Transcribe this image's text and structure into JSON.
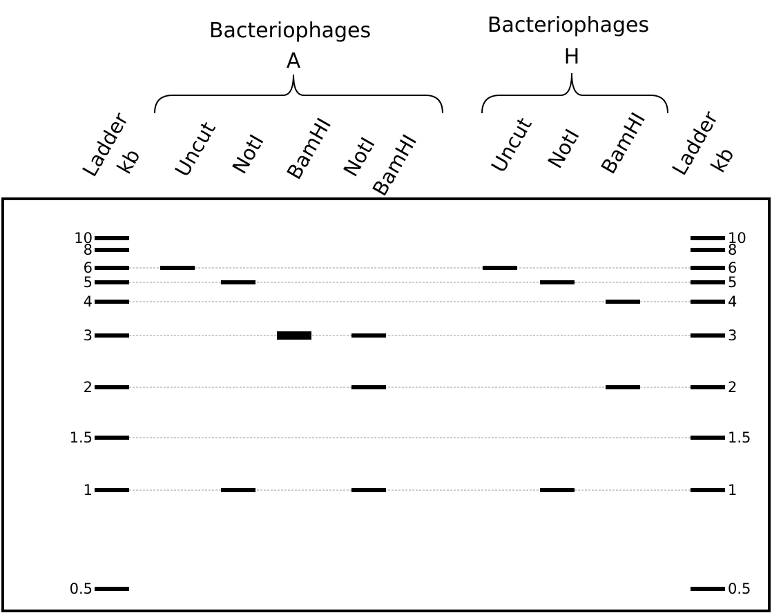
{
  "groups": [
    {
      "title": "Bacteriophages",
      "letter": "A"
    },
    {
      "title": "Bacteriophages",
      "letter": "H"
    }
  ],
  "ladder": {
    "label_line1": "Ladder",
    "label_line2": "kb",
    "sizes": [
      "10",
      "8",
      "6",
      "5",
      "4",
      "3",
      "2",
      "1.5",
      "1",
      "0.5"
    ]
  },
  "lanes": [
    {
      "group": "A",
      "line1": "Uncut",
      "line2": ""
    },
    {
      "group": "A",
      "line1": "NotI",
      "line2": ""
    },
    {
      "group": "A",
      "line1": "BamHI",
      "line2": ""
    },
    {
      "group": "A",
      "line1": "NotI",
      "line2": "BamHI"
    },
    {
      "group": "H",
      "line1": "Uncut",
      "line2": ""
    },
    {
      "group": "H",
      "line1": "NotI",
      "line2": ""
    },
    {
      "group": "H",
      "line1": "BamHI",
      "line2": ""
    }
  ],
  "bands": [
    {
      "lane": 0,
      "kb": "6",
      "thick": false
    },
    {
      "lane": 1,
      "kb": "5",
      "thick": false
    },
    {
      "lane": 1,
      "kb": "1",
      "thick": false
    },
    {
      "lane": 2,
      "kb": "3",
      "thick": true
    },
    {
      "lane": 3,
      "kb": "3",
      "thick": false
    },
    {
      "lane": 3,
      "kb": "2",
      "thick": false
    },
    {
      "lane": 3,
      "kb": "1",
      "thick": false
    },
    {
      "lane": 4,
      "kb": "6",
      "thick": false
    },
    {
      "lane": 5,
      "kb": "5",
      "thick": false
    },
    {
      "lane": 5,
      "kb": "1",
      "thick": false
    },
    {
      "lane": 6,
      "kb": "4",
      "thick": false
    },
    {
      "lane": 6,
      "kb": "2",
      "thick": false
    }
  ],
  "guide_lines_at_kb": [
    "6",
    "5",
    "4",
    "3",
    "2",
    "1.5",
    "1"
  ]
}
